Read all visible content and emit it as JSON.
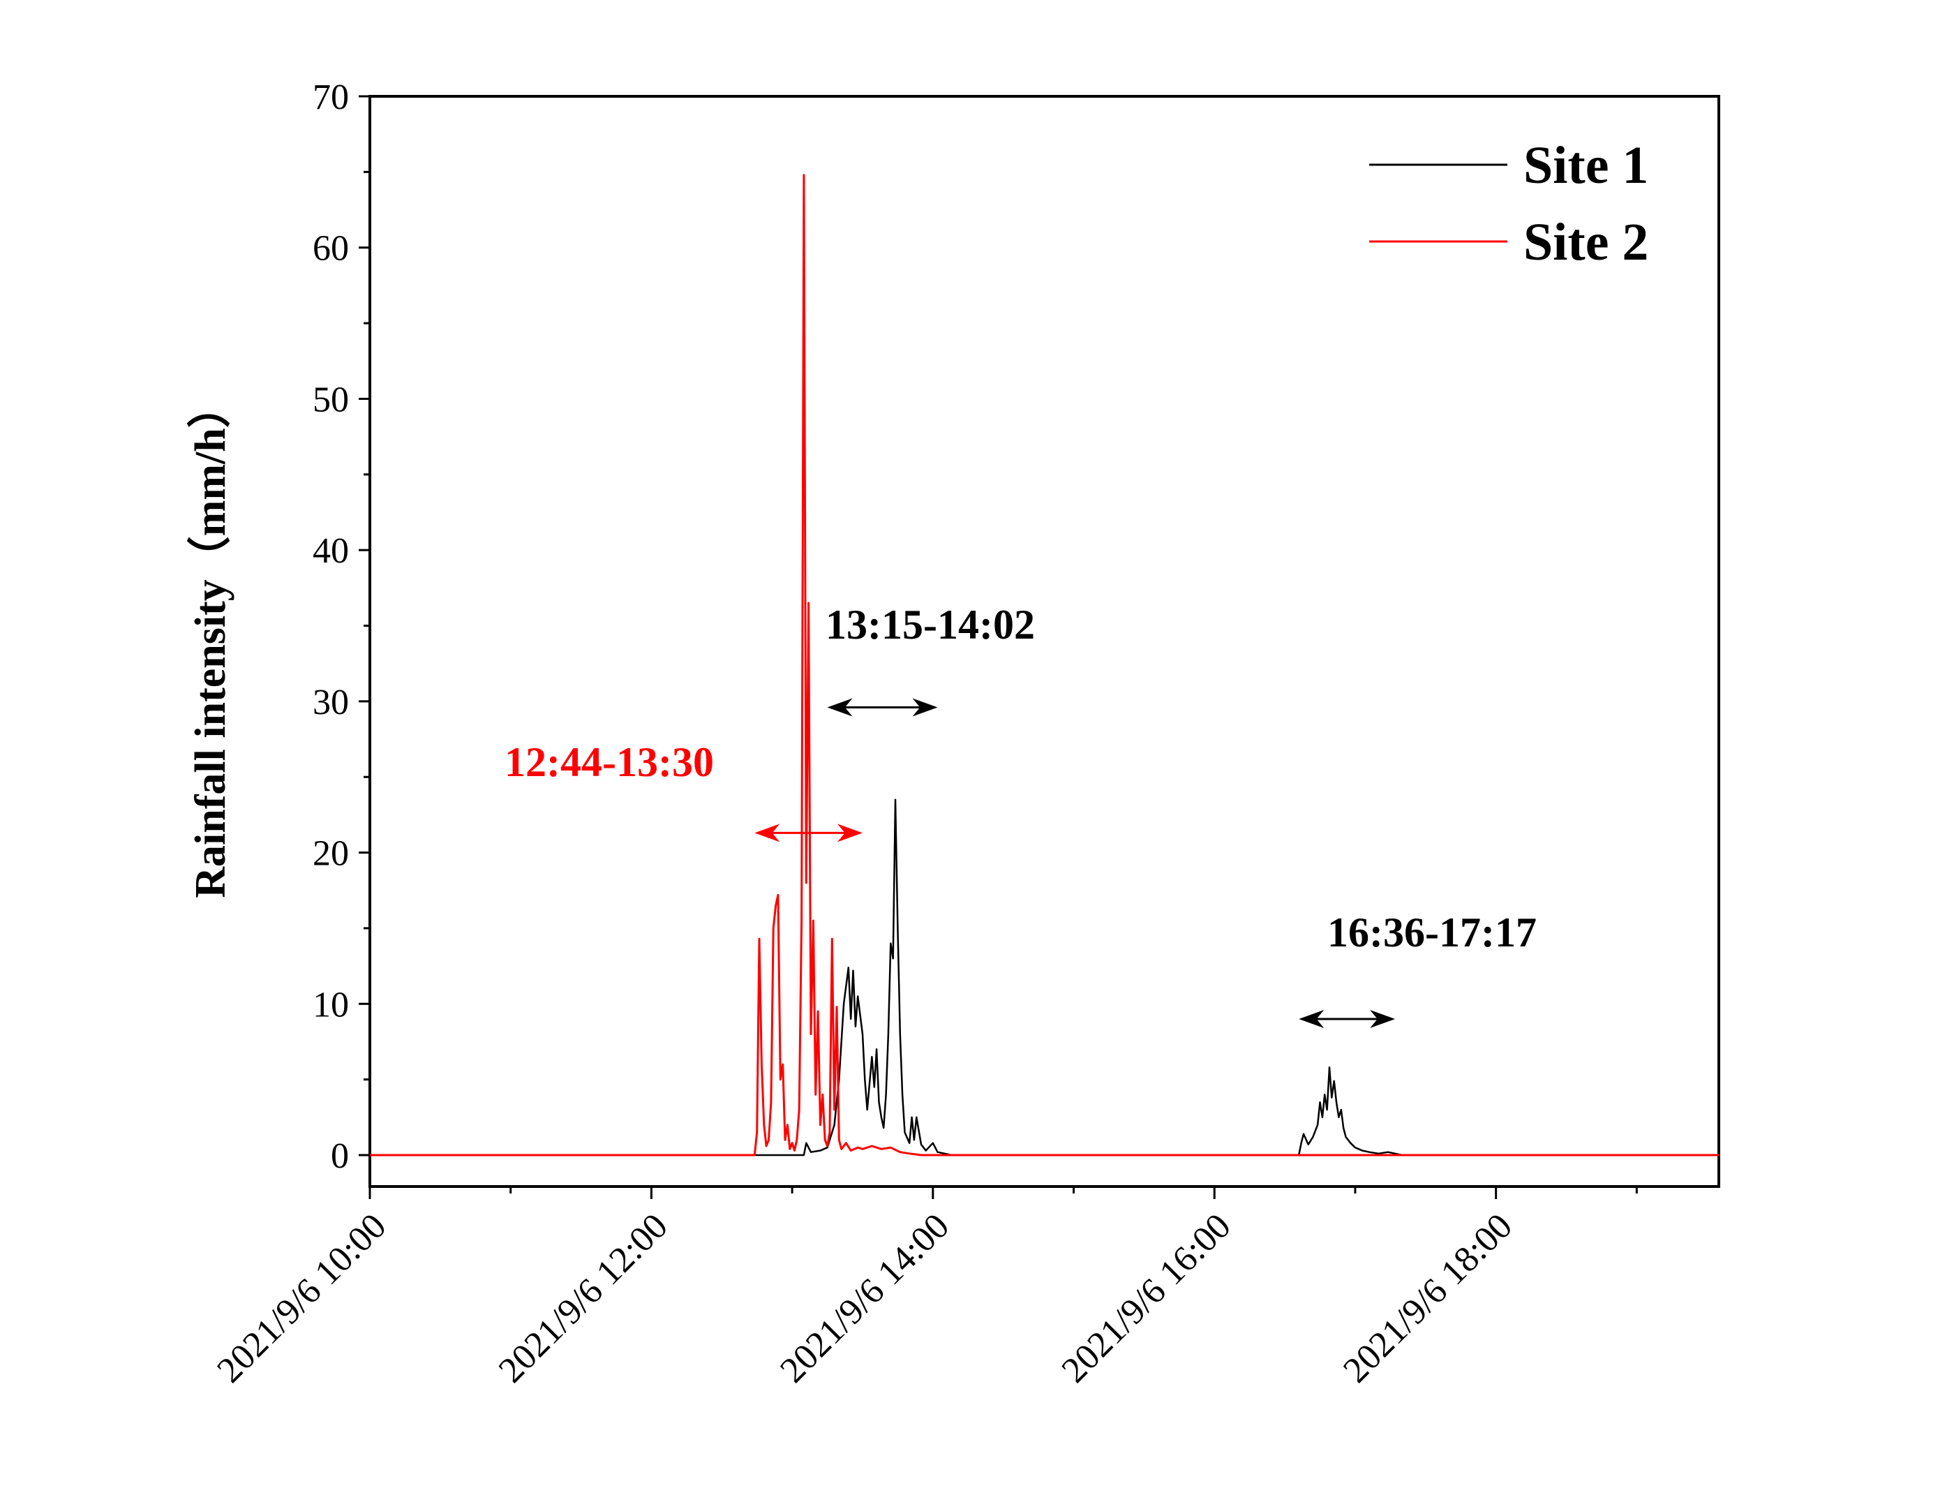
{
  "chart_data": {
    "type": "line",
    "title": "",
    "xlabel": "",
    "ylabel": "Rainfall intensity（mm/h）",
    "xlim": [
      "2021/9/6 10:00",
      "2021/9/6 19:35"
    ],
    "ylim": [
      0,
      70
    ],
    "x_tick_labels": [
      "2021/9/6 10:00",
      "2021/9/6 12:00",
      "2021/9/6 14:00",
      "2021/9/6 16:00",
      "2021/9/6 18:00"
    ],
    "y_tick_labels": [
      "0",
      "10",
      "20",
      "30",
      "40",
      "50",
      "60",
      "70"
    ],
    "grid": false,
    "legend_position": "top-right",
    "colors": {
      "Site 1": "#000000",
      "Site 2": "#ff0000"
    },
    "series": [
      {
        "name": "Site 1",
        "color": "#000000",
        "points": [
          [
            "10:00",
            0
          ],
          [
            "13:05",
            0
          ],
          [
            "13:06",
            0.8
          ],
          [
            "13:08",
            0.2
          ],
          [
            "13:12",
            0.3
          ],
          [
            "13:15",
            0.5
          ],
          [
            "13:18",
            2.0
          ],
          [
            "13:20",
            5.0
          ],
          [
            "13:22",
            10.0
          ],
          [
            "13:24",
            12.4
          ],
          [
            "13:25",
            9.0
          ],
          [
            "13:26",
            12.2
          ],
          [
            "13:27",
            8.5
          ],
          [
            "13:28",
            10.5
          ],
          [
            "13:30",
            8.0
          ],
          [
            "13:31",
            5.0
          ],
          [
            "13:32",
            3.0
          ],
          [
            "13:34",
            6.5
          ],
          [
            "13:35",
            4.5
          ],
          [
            "13:36",
            7.0
          ],
          [
            "13:37",
            3.5
          ],
          [
            "13:38",
            2.5
          ],
          [
            "13:39",
            1.8
          ],
          [
            "13:40",
            4.0
          ],
          [
            "13:41",
            8.0
          ],
          [
            "13:42",
            14.0
          ],
          [
            "13:43",
            13.0
          ],
          [
            "13:44",
            23.5
          ],
          [
            "13:45",
            15.0
          ],
          [
            "13:46",
            8.0
          ],
          [
            "13:47",
            4.0
          ],
          [
            "13:48",
            1.5
          ],
          [
            "13:50",
            0.8
          ],
          [
            "13:51",
            2.5
          ],
          [
            "13:52",
            1.0
          ],
          [
            "13:53",
            2.5
          ],
          [
            "13:55",
            0.7
          ],
          [
            "13:57",
            0.3
          ],
          [
            "14:00",
            0.8
          ],
          [
            "14:02",
            0.2
          ],
          [
            "14:05",
            0.1
          ],
          [
            "14:08",
            0
          ],
          [
            "16:36",
            0
          ],
          [
            "16:37",
            0.8
          ],
          [
            "16:38",
            1.4
          ],
          [
            "16:40",
            0.7
          ],
          [
            "16:42",
            1.2
          ],
          [
            "16:44",
            2.0
          ],
          [
            "16:45",
            3.5
          ],
          [
            "16:46",
            2.5
          ],
          [
            "16:47",
            4.0
          ],
          [
            "16:48",
            3.0
          ],
          [
            "16:49",
            5.8
          ],
          [
            "16:50",
            3.8
          ],
          [
            "16:51",
            4.9
          ],
          [
            "16:52",
            3.5
          ],
          [
            "16:53",
            2.5
          ],
          [
            "16:54",
            3.0
          ],
          [
            "16:55",
            1.8
          ],
          [
            "16:56",
            1.2
          ],
          [
            "16:58",
            0.8
          ],
          [
            "17:00",
            0.5
          ],
          [
            "17:03",
            0.3
          ],
          [
            "17:06",
            0.2
          ],
          [
            "17:10",
            0.1
          ],
          [
            "17:14",
            0.2
          ],
          [
            "17:17",
            0.1
          ],
          [
            "17:20",
            0
          ],
          [
            "19:35",
            0
          ]
        ]
      },
      {
        "name": "Site 2",
        "color": "#ff0000",
        "points": [
          [
            "10:00",
            0
          ],
          [
            "12:44",
            0
          ],
          [
            "12:45",
            1.5
          ],
          [
            "12:46",
            14.3
          ],
          [
            "12:47",
            6.0
          ],
          [
            "12:48",
            2.0
          ],
          [
            "12:49",
            0.6
          ],
          [
            "12:50",
            1.0
          ],
          [
            "12:51",
            3.5
          ],
          [
            "12:52",
            15.0
          ],
          [
            "12:53",
            16.5
          ],
          [
            "12:54",
            17.2
          ],
          [
            "12:55",
            5.0
          ],
          [
            "12:56",
            6.0
          ],
          [
            "12:57",
            1.0
          ],
          [
            "12:58",
            2.0
          ],
          [
            "12:59",
            0.4
          ],
          [
            "13:00",
            0.8
          ],
          [
            "13:01",
            0.3
          ],
          [
            "13:02",
            1.0
          ],
          [
            "13:03",
            3.0
          ],
          [
            "13:04",
            15.5
          ],
          [
            "13:05",
            64.8
          ],
          [
            "13:06",
            18.0
          ],
          [
            "13:07",
            36.5
          ],
          [
            "13:08",
            8.0
          ],
          [
            "13:09",
            15.5
          ],
          [
            "13:10",
            4.0
          ],
          [
            "13:11",
            9.5
          ],
          [
            "13:12",
            2.0
          ],
          [
            "13:13",
            4.0
          ],
          [
            "13:14",
            1.0
          ],
          [
            "13:15",
            0.6
          ],
          [
            "13:16",
            1.5
          ],
          [
            "13:17",
            14.3
          ],
          [
            "13:18",
            3.0
          ],
          [
            "13:19",
            9.8
          ],
          [
            "13:20",
            1.0
          ],
          [
            "13:21",
            0.4
          ],
          [
            "13:23",
            0.8
          ],
          [
            "13:25",
            0.3
          ],
          [
            "13:28",
            0.5
          ],
          [
            "13:30",
            0.4
          ],
          [
            "13:34",
            0.6
          ],
          [
            "13:38",
            0.4
          ],
          [
            "13:42",
            0.5
          ],
          [
            "13:46",
            0.2
          ],
          [
            "13:50",
            0.1
          ],
          [
            "13:55",
            0
          ],
          [
            "19:35",
            0
          ]
        ]
      }
    ],
    "annotations": [
      {
        "text": "12:44-13:30",
        "color": "#ff0000",
        "arrow_from": "12:44",
        "arrow_to": "13:30",
        "arrow_y": 21.3
      },
      {
        "text": "13:15-14:02",
        "color": "#000000",
        "arrow_from": "13:15",
        "arrow_to": "14:02",
        "arrow_y": 29.6
      },
      {
        "text": "16:36-17:17",
        "color": "#000000",
        "arrow_from": "16:36",
        "arrow_to": "17:17",
        "arrow_y": 9.0
      }
    ]
  }
}
